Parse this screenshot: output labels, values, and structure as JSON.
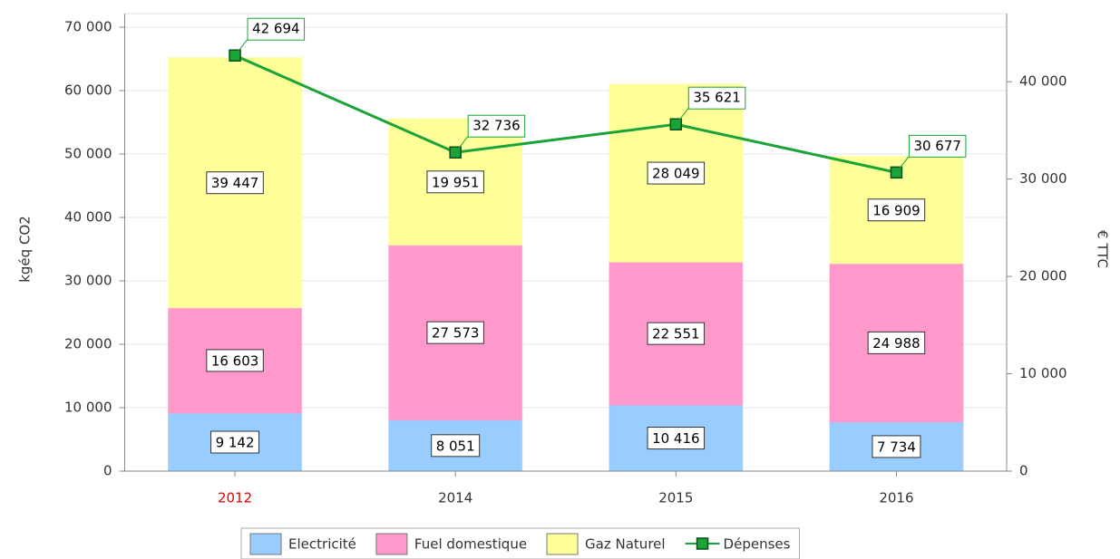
{
  "chart_data": {
    "type": "bar",
    "stacked": true,
    "y_label": "kgéq CO2",
    "y2_label": "€ TTC",
    "categories": [
      "2012",
      "2014",
      "2015",
      "2016"
    ],
    "x_tick_colors": [
      "#e00000",
      "#333333",
      "#333333",
      "#333333"
    ],
    "series": [
      {
        "name": "Electricité",
        "type": "bar",
        "color": "#99ccff",
        "values": [
          9142,
          8051,
          10416,
          7734
        ],
        "value_labels": [
          "9 142",
          "8 051",
          "10 416",
          "7 734"
        ]
      },
      {
        "name": "Fuel domestique",
        "type": "bar",
        "color": "#ff99cc",
        "values": [
          16603,
          27573,
          22551,
          24988
        ],
        "value_labels": [
          "16 603",
          "27 573",
          "22 551",
          "24 988"
        ]
      },
      {
        "name": "Gaz Naturel",
        "type": "bar",
        "color": "#ffff99",
        "values": [
          39447,
          19951,
          28049,
          16909
        ],
        "value_labels": [
          "39 447",
          "19 951",
          "28 049",
          "16 909"
        ]
      },
      {
        "name": "Dépenses",
        "type": "line",
        "axis": "y2",
        "color": "#1aa336",
        "values": [
          42694,
          32736,
          35621,
          30677
        ],
        "value_labels": [
          "42 694",
          "32 736",
          "35 621",
          "30 677"
        ]
      }
    ],
    "ylim": [
      0,
      70000
    ],
    "yticks": [
      0,
      {
        "value": 10000,
        "label": "10 000"
      },
      {
        "value": 20000,
        "label": "20 000"
      },
      {
        "value": 30000,
        "label": "30 000"
      },
      {
        "value": 40000,
        "label": "40 000"
      },
      {
        "value": 50000,
        "label": "50 000"
      },
      {
        "value": 60000,
        "label": "60 000"
      },
      {
        "value": 70000,
        "label": "70 000"
      }
    ],
    "y2lim": [
      0,
      45600
    ],
    "y2ticks": [
      0,
      {
        "value": 10000,
        "label": "10 000"
      },
      {
        "value": 20000,
        "label": "20 000"
      },
      {
        "value": 30000,
        "label": "30 000"
      },
      {
        "value": 40000,
        "label": "40 000"
      }
    ],
    "grid": true,
    "legend": "bottom"
  }
}
